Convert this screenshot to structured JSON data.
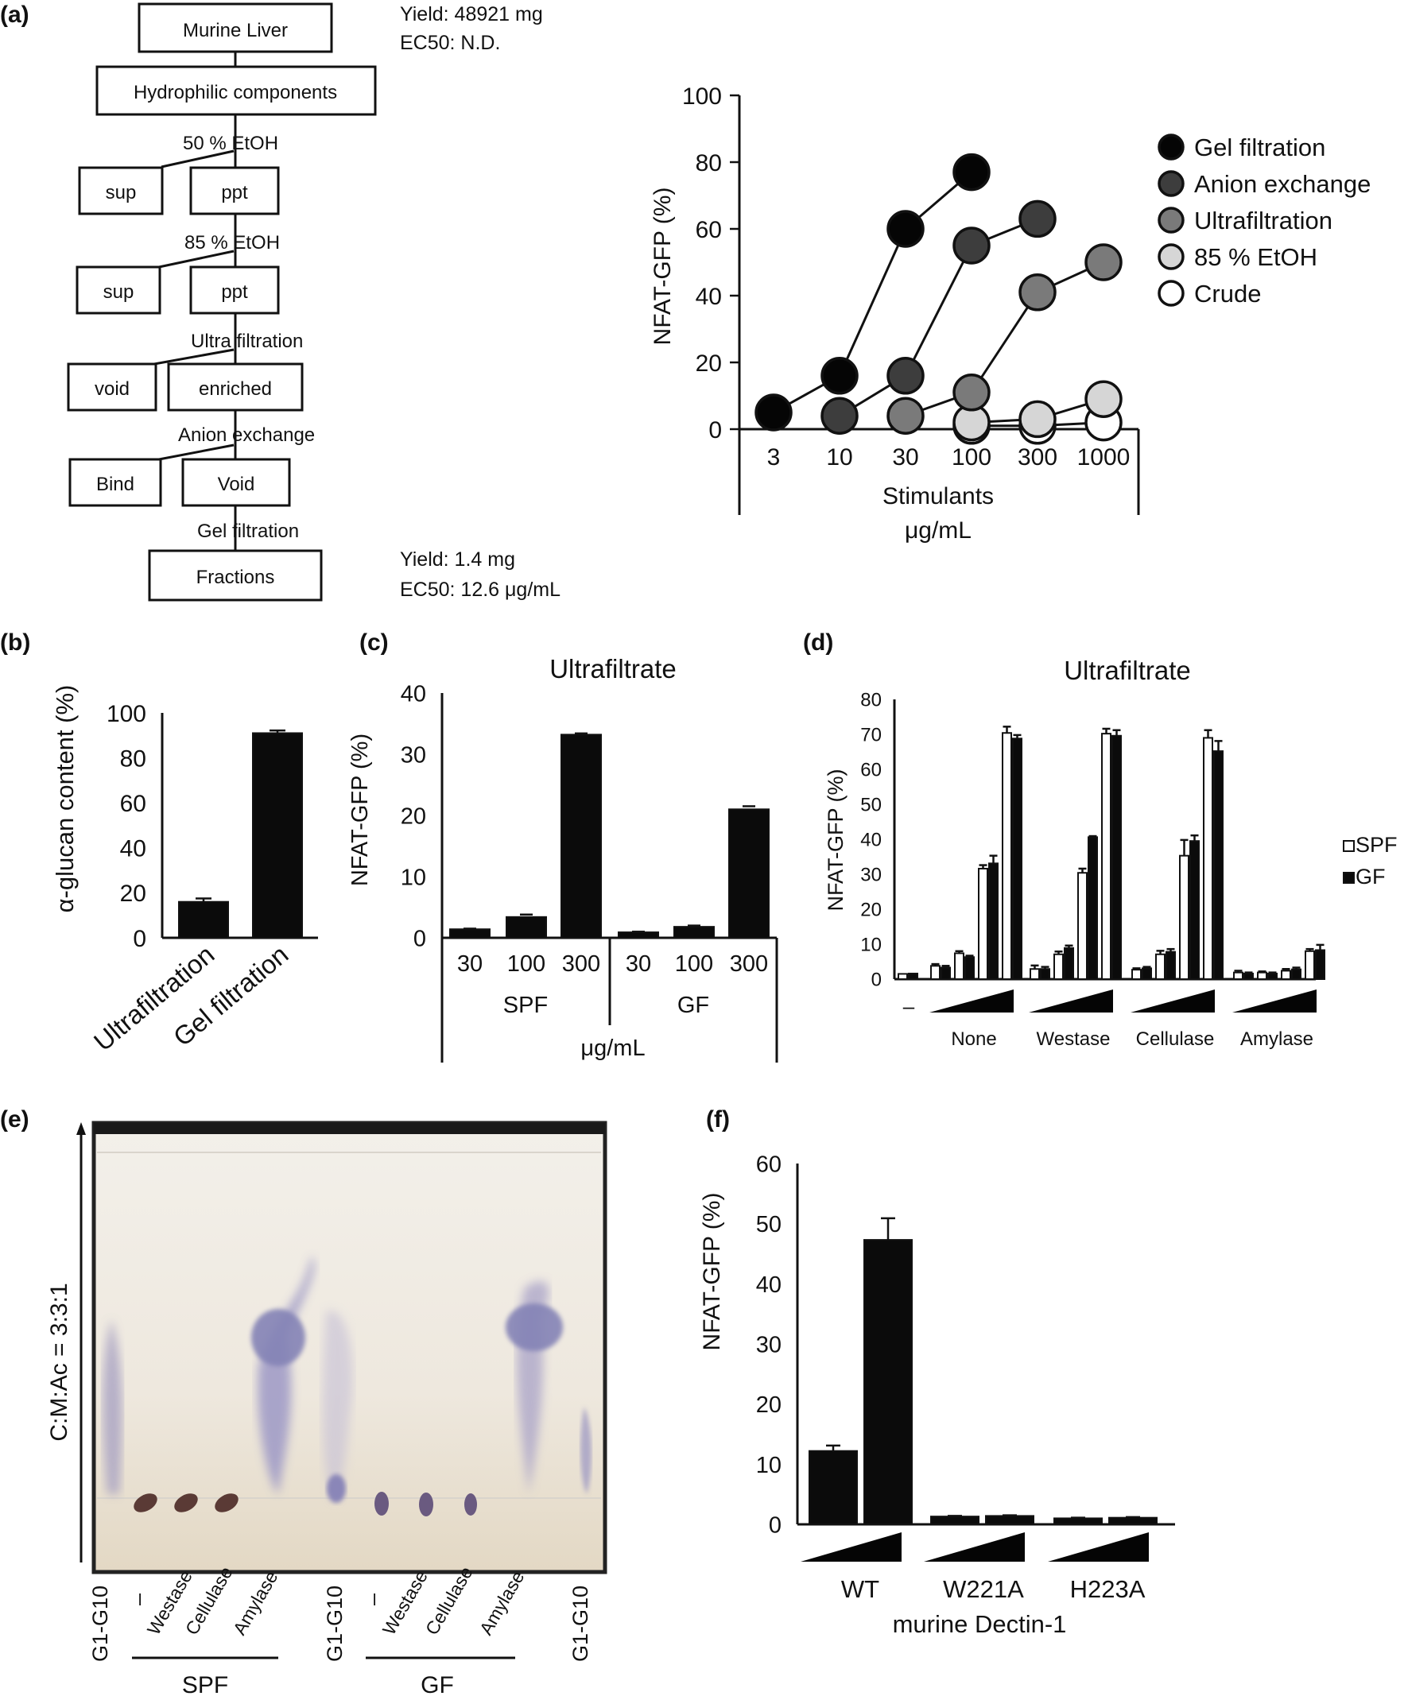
{
  "panels": {
    "a": "(a)",
    "b": "(b)",
    "c": "(c)",
    "d": "(d)",
    "e": "(e)",
    "f": "(f)"
  },
  "flow": {
    "top_box": "Murine Liver",
    "yield_top": "Yield: 48921 mg",
    "ec50_top": "EC50: N.D.",
    "hydrophilic": "Hydrophilic components",
    "step1": "50 %   EtOH",
    "sup1": "sup",
    "ppt1": "ppt",
    "step2": "85 %   EtOH",
    "sup2": "sup",
    "ppt2": "ppt",
    "step3": "Ultra filtration",
    "void3": "void",
    "enriched": "enriched",
    "step4": "Anion   exchange",
    "bind": "Bind",
    "void4": "Void",
    "step5": "Gel   filtration",
    "fractions": "Fractions",
    "yield_bottom": "Yield: 1.4 mg",
    "ec50_bottom": "EC50: 12.6 μg/mL"
  },
  "chart_data": [
    {
      "panel": "a",
      "type": "scatter",
      "ylabel": "NFAT-GFP (%)",
      "xlabel": "Stimulants",
      "xunit": "μg/mL",
      "ylim": [
        0,
        100
      ],
      "yticks": [
        "0",
        "20",
        "40",
        "60",
        "80",
        "100"
      ],
      "categories": [
        "3",
        "10",
        "30",
        "100",
        "300",
        "1000"
      ],
      "series": [
        {
          "name": "Gel filtration",
          "color": "#050505",
          "x": [
            "3",
            "10",
            "30",
            "100"
          ],
          "values": [
            5,
            16,
            60,
            77
          ]
        },
        {
          "name": "Anion exchange",
          "color": "#3d3d3d",
          "x": [
            "10",
            "30",
            "100",
            "300"
          ],
          "values": [
            4,
            16,
            55,
            63
          ]
        },
        {
          "name": "Ultrafiltration",
          "color": "#7a7a7a",
          "x": [
            "30",
            "100",
            "300",
            "1000"
          ],
          "values": [
            4,
            11,
            41,
            50
          ]
        },
        {
          "name": "85 % EtOH",
          "color": "#d6d6d6",
          "x": [
            "100",
            "300",
            "1000"
          ],
          "values": [
            2,
            3,
            9
          ]
        },
        {
          "name": "Crude",
          "color": "#ffffff",
          "x": [
            "100",
            "300",
            "1000"
          ],
          "values": [
            1,
            1,
            2
          ]
        }
      ]
    },
    {
      "panel": "b",
      "type": "bar",
      "ylabel": "α-glucan content (%)",
      "ylim": [
        0,
        100
      ],
      "yticks": [
        "0",
        "20",
        "40",
        "60",
        "80",
        "100"
      ],
      "categories": [
        "Ultrafiltration",
        "Gel filtration"
      ],
      "values": [
        16,
        91
      ],
      "errors": [
        1.5,
        1.2
      ]
    },
    {
      "panel": "c",
      "type": "bar",
      "title": "Ultrafiltrate",
      "ylabel": "NFAT-GFP (%)",
      "ylim": [
        0,
        40
      ],
      "yticks": [
        "0",
        "10",
        "20",
        "30",
        "40"
      ],
      "categories": [
        "30",
        "100",
        "300",
        "30",
        "100",
        "300"
      ],
      "groups": [
        "SPF",
        "GF"
      ],
      "xunit": "μg/mL",
      "values": [
        1.4,
        3.4,
        33.2,
        0.9,
        1.8,
        21.0
      ],
      "errors": [
        0.1,
        0.4,
        0.2,
        0.1,
        0.2,
        0.5
      ]
    },
    {
      "panel": "d",
      "type": "bar",
      "title": "Ultrafiltrate",
      "ylabel": "NFAT-GFP (%)",
      "ylim": [
        0,
        80
      ],
      "yticks": [
        "0",
        "10",
        "20",
        "30",
        "40",
        "50",
        "60",
        "70",
        "80"
      ],
      "none_label": "–",
      "groups": [
        "None",
        "Westase",
        "Cellulase",
        "Amylase"
      ],
      "series": [
        {
          "name": "SPF",
          "color": "#ffffff",
          "control": 1.5,
          "values": [
            3.8,
            7.4,
            31.6,
            70.4,
            2.9,
            7.1,
            30.4,
            70.2,
            2.7,
            7.1,
            35.3,
            69.0,
            1.9,
            1.9,
            2.4,
            8.0
          ],
          "errors": [
            0.5,
            0.6,
            1.0,
            1.8,
            1.0,
            0.8,
            1.2,
            1.4,
            0.4,
            1.0,
            4.5,
            2.2,
            0.5,
            0.3,
            0.5,
            0.6
          ]
        },
        {
          "name": "GF",
          "color": "#0b0b0b",
          "control": 1.6,
          "values": [
            3.3,
            6.3,
            33.1,
            68.8,
            2.9,
            8.9,
            40.6,
            69.6,
            3.1,
            7.8,
            39.5,
            65.2,
            1.6,
            1.6,
            2.8,
            8.3
          ],
          "errors": [
            0.5,
            0.4,
            2.2,
            1.0,
            0.6,
            0.7,
            0.3,
            1.6,
            0.4,
            0.8,
            1.6,
            2.9,
            0.3,
            0.3,
            0.5,
            1.5
          ]
        }
      ]
    },
    {
      "panel": "f",
      "type": "bar",
      "ylabel": "NFAT-GFP (%)",
      "xlabel": "murine Dectin-1",
      "ylim": [
        0,
        60
      ],
      "yticks": [
        "0",
        "10",
        "20",
        "30",
        "40",
        "50",
        "60"
      ],
      "groups": [
        "WT",
        "W221A",
        "H223A"
      ],
      "values": [
        12.2,
        47.3,
        1.3,
        1.4,
        1.0,
        1.1
      ],
      "errors": [
        0.9,
        3.6,
        0.1,
        0.1,
        0.1,
        0.1
      ]
    }
  ],
  "tlc": {
    "side_label": "C:M:Ac = 3:3:1",
    "lanes": [
      "G1-G10",
      "–",
      "Westase",
      "Cellulase",
      "Amylase",
      "G1-G10",
      "–",
      "Westase",
      "Cellulase",
      "Amylase",
      "G1-G10"
    ],
    "group_labels": [
      "SPF",
      "GF"
    ]
  }
}
